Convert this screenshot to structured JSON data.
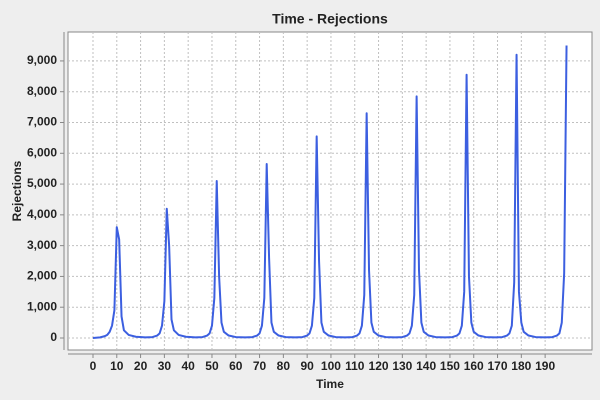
{
  "chart_data": {
    "type": "line",
    "title": "Time - Rejections",
    "xlabel": "Time",
    "ylabel": "Rejections",
    "color": "#3c5fe0",
    "x": [
      0,
      3,
      5,
      6,
      7,
      8,
      9,
      10,
      11,
      12,
      13,
      15,
      18,
      22,
      25,
      27,
      28,
      29,
      30,
      31,
      32,
      33,
      34,
      36,
      39,
      43,
      46,
      48,
      49,
      50,
      51,
      52,
      53,
      54,
      55,
      57,
      60,
      64,
      67,
      69,
      70,
      71,
      72,
      73,
      74,
      75,
      76,
      78,
      81,
      85,
      88,
      90,
      91,
      92,
      93,
      94,
      95,
      96,
      97,
      99,
      102,
      106,
      109,
      111,
      112,
      113,
      114,
      115,
      116,
      117,
      118,
      120,
      123,
      127,
      130,
      132,
      133,
      134,
      135,
      136,
      137,
      138,
      139,
      141,
      144,
      148,
      151,
      153,
      154,
      155,
      156,
      157,
      158,
      159,
      160,
      162,
      165,
      169,
      172,
      174,
      175,
      176,
      177,
      178,
      179,
      180,
      181,
      183,
      186,
      190,
      193,
      195,
      196,
      197,
      198,
      199
    ],
    "values": [
      0,
      20,
      60,
      100,
      200,
      400,
      900,
      3600,
      3200,
      700,
      250,
      100,
      40,
      20,
      30,
      80,
      150,
      400,
      1200,
      4200,
      3000,
      600,
      250,
      100,
      40,
      20,
      30,
      80,
      150,
      400,
      1300,
      5100,
      2000,
      500,
      200,
      80,
      30,
      20,
      30,
      80,
      150,
      400,
      1300,
      5650,
      2600,
      500,
      200,
      80,
      30,
      20,
      30,
      80,
      150,
      400,
      1300,
      6550,
      2500,
      500,
      200,
      80,
      30,
      20,
      30,
      80,
      150,
      400,
      1400,
      7300,
      2200,
      500,
      200,
      80,
      30,
      20,
      30,
      80,
      150,
      400,
      1400,
      7850,
      2200,
      500,
      200,
      80,
      30,
      20,
      30,
      80,
      150,
      400,
      1500,
      8550,
      2000,
      500,
      200,
      80,
      30,
      20,
      30,
      80,
      150,
      400,
      1800,
      9200,
      1500,
      500,
      200,
      80,
      30,
      20,
      30,
      80,
      150,
      500,
      2100,
      9500
    ],
    "xlim": [
      -10.5,
      209.7
    ],
    "ylim": [
      -390,
      9940
    ],
    "xticks": [
      0,
      10,
      20,
      30,
      40,
      50,
      60,
      70,
      80,
      90,
      100,
      110,
      120,
      130,
      140,
      150,
      160,
      170,
      180,
      190
    ],
    "yticks": [
      0,
      {
        "value": 1000,
        "label": "1,000"
      },
      {
        "value": 2000,
        "label": "2,000"
      },
      {
        "value": 3000,
        "label": "3,000"
      },
      {
        "value": 4000,
        "label": "4,000"
      },
      {
        "value": 5000,
        "label": "5,000"
      },
      {
        "value": 6000,
        "label": "6,000"
      },
      {
        "value": 7000,
        "label": "7,000"
      },
      {
        "value": 8000,
        "label": "8,000"
      },
      {
        "value": 9000,
        "label": "9,000"
      }
    ],
    "grid": true
  }
}
